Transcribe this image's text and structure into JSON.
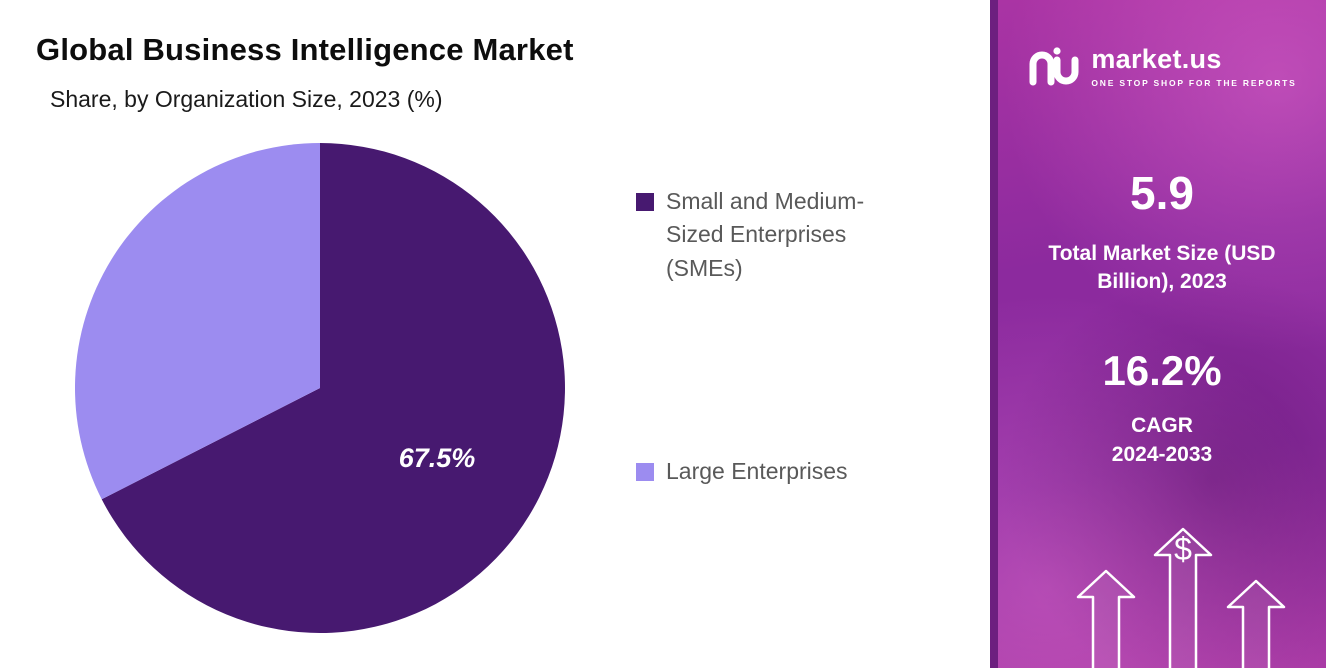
{
  "header": {
    "title": "Global Business Intelligence Market",
    "subtitle": "Share, by Organization Size, 2023 (%)"
  },
  "chart_data": {
    "type": "pie",
    "title": "Global Business Intelligence Market",
    "subtitle": "Share, by Organization Size, 2023 (%)",
    "unit": "%",
    "start_angle_deg": 0,
    "direction": "clockwise",
    "legend_position": "right",
    "slices": [
      {
        "label": "Small and Medium-Sized Enterprises (SMEs)",
        "value": 67.5,
        "color": "#471970",
        "data_label": "67.5%"
      },
      {
        "label": "Large Enterprises",
        "value": 32.5,
        "color": "#9c8cf0",
        "data_label": ""
      }
    ]
  },
  "sidebar": {
    "brand": {
      "name": "market.us",
      "tagline": "ONE STOP SHOP FOR THE REPORTS"
    },
    "stats": [
      {
        "value": "5.9",
        "label": "Total Market Size (USD Billion), 2023"
      },
      {
        "value": "16.2%",
        "label": "CAGR",
        "sublabel": "2024-2033"
      }
    ],
    "currency_symbol": "$"
  }
}
